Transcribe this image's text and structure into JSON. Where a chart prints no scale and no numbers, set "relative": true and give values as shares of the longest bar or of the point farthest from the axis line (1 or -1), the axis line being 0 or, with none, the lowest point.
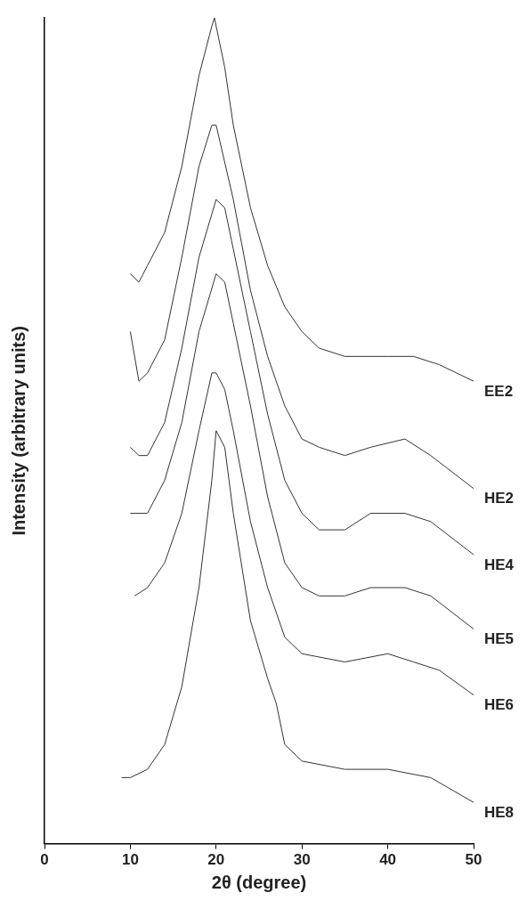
{
  "chart_data": {
    "type": "line",
    "xlabel": "2θ (degree)",
    "ylabel": "Intensity (arbitrary units)",
    "relative": true,
    "xlim": [
      0,
      50
    ],
    "xticks": [
      0,
      10,
      20,
      30,
      40,
      50
    ],
    "grid": false,
    "legend": false,
    "marker": "none",
    "line_style": "solid",
    "series": [
      {
        "name": "EE2",
        "color": "#333333",
        "x": [
          10,
          11,
          12,
          14,
          16,
          18,
          19.5,
          19.8,
          21,
          22,
          24,
          26,
          28,
          30,
          32,
          35,
          40,
          43,
          46,
          50
        ],
        "values": [
          0.69,
          0.68,
          0.7,
          0.74,
          0.82,
          0.93,
          0.99,
          1,
          0.94,
          0.87,
          0.77,
          0.7,
          0.65,
          0.62,
          0.6,
          0.59,
          0.59,
          0.59,
          0.58,
          0.56
        ]
      },
      {
        "name": "HE2",
        "color": "#333333",
        "x": [
          10,
          11,
          12,
          14,
          16,
          18,
          19.5,
          20,
          22,
          24,
          26,
          28,
          30,
          32,
          35,
          38,
          42,
          45,
          50
        ],
        "values": [
          0.62,
          0.56,
          0.57,
          0.61,
          0.71,
          0.82,
          0.87,
          0.87,
          0.78,
          0.67,
          0.59,
          0.53,
          0.49,
          0.48,
          0.47,
          0.48,
          0.49,
          0.47,
          0.43
        ]
      },
      {
        "name": "HE4",
        "color": "#333333",
        "x": [
          10,
          11,
          12,
          14,
          16,
          18,
          20,
          21,
          22,
          24,
          26,
          28,
          30,
          32,
          35,
          38,
          42,
          45,
          50
        ],
        "values": [
          0.48,
          0.47,
          0.47,
          0.51,
          0.6,
          0.71,
          0.78,
          0.77,
          0.72,
          0.62,
          0.52,
          0.44,
          0.4,
          0.38,
          0.38,
          0.4,
          0.4,
          0.39,
          0.35
        ]
      },
      {
        "name": "HE5",
        "color": "#333333",
        "x": [
          10,
          11,
          12,
          14,
          16,
          18,
          20,
          21,
          22,
          24,
          26,
          28,
          30,
          32,
          35,
          38,
          42,
          45,
          50
        ],
        "values": [
          0.4,
          0.4,
          0.4,
          0.44,
          0.51,
          0.62,
          0.69,
          0.68,
          0.63,
          0.53,
          0.42,
          0.34,
          0.31,
          0.3,
          0.3,
          0.31,
          0.31,
          0.3,
          0.26
        ]
      },
      {
        "name": "HE6",
        "color": "#333333",
        "x": [
          10.5,
          12,
          14,
          16,
          18,
          19.5,
          20,
          21,
          22,
          24,
          26,
          28,
          30,
          35,
          40,
          43,
          46,
          50
        ],
        "values": [
          0.3,
          0.31,
          0.34,
          0.4,
          0.5,
          0.57,
          0.57,
          0.55,
          0.5,
          0.39,
          0.31,
          0.25,
          0.23,
          0.22,
          0.23,
          0.22,
          0.21,
          0.18
        ]
      },
      {
        "name": "HE8",
        "color": "#333333",
        "x": [
          9,
          10,
          12,
          14,
          16,
          18,
          19.5,
          20,
          21,
          22,
          24,
          26,
          27,
          28,
          30,
          35,
          40,
          45,
          50
        ],
        "values": [
          0.08,
          0.08,
          0.09,
          0.12,
          0.19,
          0.31,
          0.44,
          0.5,
          0.48,
          0.4,
          0.27,
          0.2,
          0.17,
          0.12,
          0.1,
          0.09,
          0.09,
          0.08,
          0.05
        ]
      }
    ]
  }
}
